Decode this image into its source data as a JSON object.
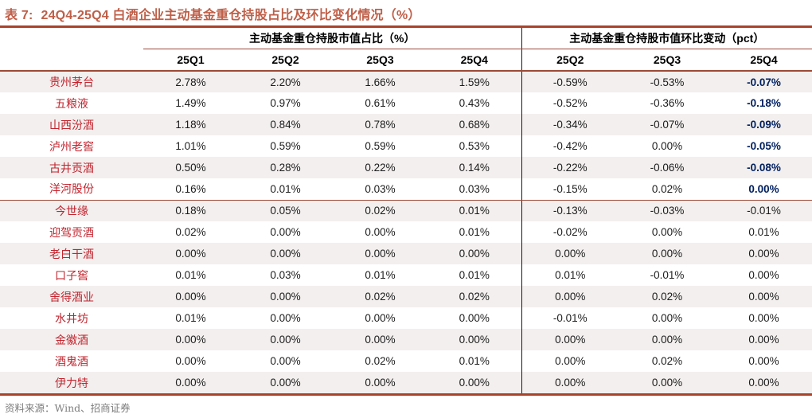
{
  "title": {
    "prefix": "表 7:",
    "text": "24Q4-25Q4 白酒企业主动基金重仓持股占比及环比变化情况（%）"
  },
  "table": {
    "group_headers": [
      {
        "label": "主动基金重仓持股市值占比（%）"
      },
      {
        "label": "主动基金重仓持股市值环比变动（pct）"
      }
    ],
    "columns_left": [
      "25Q1",
      "25Q2",
      "25Q3",
      "25Q4"
    ],
    "columns_right": [
      "25Q2",
      "25Q3",
      "25Q4"
    ],
    "rows": [
      {
        "name": "贵州茅台",
        "values": [
          "2.78%",
          "2.20%",
          "1.66%",
          "1.59%"
        ],
        "changes": [
          "-0.59%",
          "-0.53%",
          "-0.07%"
        ],
        "highlight_last": true
      },
      {
        "name": "五粮液",
        "values": [
          "1.49%",
          "0.97%",
          "0.61%",
          "0.43%"
        ],
        "changes": [
          "-0.52%",
          "-0.36%",
          "-0.18%"
        ],
        "highlight_last": true
      },
      {
        "name": "山西汾酒",
        "values": [
          "1.18%",
          "0.84%",
          "0.78%",
          "0.68%"
        ],
        "changes": [
          "-0.34%",
          "-0.07%",
          "-0.09%"
        ],
        "highlight_last": true
      },
      {
        "name": "泸州老窖",
        "values": [
          "1.01%",
          "0.59%",
          "0.59%",
          "0.53%"
        ],
        "changes": [
          "-0.42%",
          "0.00%",
          "-0.05%"
        ],
        "highlight_last": true
      },
      {
        "name": "古井贡酒",
        "values": [
          "0.50%",
          "0.28%",
          "0.22%",
          "0.14%"
        ],
        "changes": [
          "-0.22%",
          "-0.06%",
          "-0.08%"
        ],
        "highlight_last": true
      },
      {
        "name": "洋河股份",
        "values": [
          "0.16%",
          "0.01%",
          "0.03%",
          "0.03%"
        ],
        "changes": [
          "-0.15%",
          "0.02%",
          "0.00%"
        ],
        "highlight_last": true
      },
      {
        "name": "今世缘",
        "values": [
          "0.18%",
          "0.05%",
          "0.02%",
          "0.01%"
        ],
        "changes": [
          "-0.13%",
          "-0.03%",
          "-0.01%"
        ],
        "highlight_last": false
      },
      {
        "name": "迎驾贡酒",
        "values": [
          "0.02%",
          "0.00%",
          "0.00%",
          "0.01%"
        ],
        "changes": [
          "-0.02%",
          "0.00%",
          "0.01%"
        ],
        "highlight_last": false
      },
      {
        "name": "老白干酒",
        "values": [
          "0.00%",
          "0.00%",
          "0.00%",
          "0.00%"
        ],
        "changes": [
          "0.00%",
          "0.00%",
          "0.00%"
        ],
        "highlight_last": false
      },
      {
        "name": "口子窖",
        "values": [
          "0.01%",
          "0.03%",
          "0.01%",
          "0.01%"
        ],
        "changes": [
          "0.01%",
          "-0.01%",
          "0.00%"
        ],
        "highlight_last": false
      },
      {
        "name": "舍得酒业",
        "values": [
          "0.00%",
          "0.00%",
          "0.02%",
          "0.02%"
        ],
        "changes": [
          "0.00%",
          "0.02%",
          "0.00%"
        ],
        "highlight_last": false
      },
      {
        "name": "水井坊",
        "values": [
          "0.01%",
          "0.00%",
          "0.00%",
          "0.00%"
        ],
        "changes": [
          "-0.01%",
          "0.00%",
          "0.00%"
        ],
        "highlight_last": false
      },
      {
        "name": "金徽酒",
        "values": [
          "0.00%",
          "0.00%",
          "0.00%",
          "0.00%"
        ],
        "changes": [
          "0.00%",
          "0.00%",
          "0.00%"
        ],
        "highlight_last": false
      },
      {
        "name": "酒鬼酒",
        "values": [
          "0.00%",
          "0.00%",
          "0.02%",
          "0.01%"
        ],
        "changes": [
          "0.00%",
          "0.02%",
          "0.00%"
        ],
        "highlight_last": false
      },
      {
        "name": "伊力特",
        "values": [
          "0.00%",
          "0.00%",
          "0.00%",
          "0.00%"
        ],
        "changes": [
          "0.00%",
          "0.00%",
          "0.00%"
        ],
        "highlight_last": false
      }
    ]
  },
  "footer": {
    "source": "资料来源：Wind、招商证券"
  },
  "colors": {
    "title": "#bf5f48",
    "rule_thick": "#a8432a",
    "rule_thin": "#9c4a36",
    "company_name_red": "#c2242e",
    "highlight_navy": "#002060",
    "stripe_background": "#f2efee",
    "footer_gray": "#7d7d7d"
  }
}
